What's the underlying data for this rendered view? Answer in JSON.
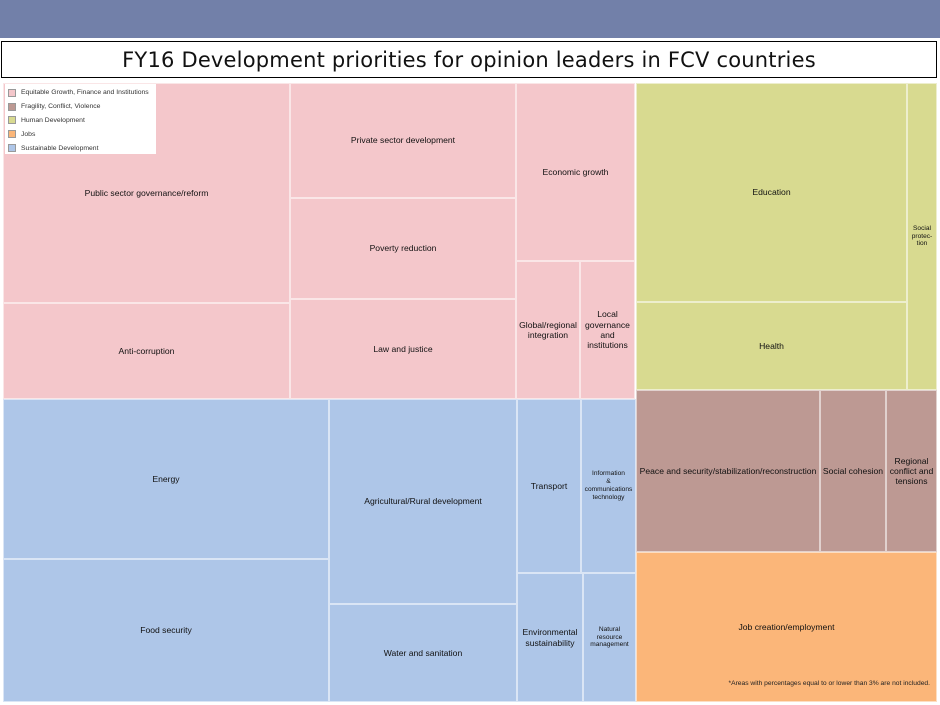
{
  "title": "FY16 Development priorities for opinion leaders in FCV countries",
  "footnote": "*Areas with percentages equal to or lower than 3% are not included.",
  "legend": [
    {
      "label": "Equitable Growth, Finance and Institutions",
      "color": "#f4c7cb"
    },
    {
      "label": "Fragility, Conflict, Violence",
      "color": "#bd9993"
    },
    {
      "label": "Human Development",
      "color": "#d8da90"
    },
    {
      "label": "Jobs",
      "color": "#fbb679"
    },
    {
      "label": "Sustainable Development",
      "color": "#aec6e8"
    }
  ],
  "chart_data": {
    "type": "treemap",
    "title": "FY16 Development priorities for opinion leaders in FCV countries",
    "groups": [
      {
        "name": "Equitable Growth, Finance and Institutions",
        "color": "#f4c7cb",
        "items": [
          {
            "label": "Public sector governance/reform",
            "area": 6.3
          },
          {
            "label": "Anti-corruption",
            "area": 2.7
          },
          {
            "label": "Private sector development",
            "area": 2.8
          },
          {
            "label": "Poverty reduction",
            "area": 2.5
          },
          {
            "label": "Law and justice",
            "area": 2.4
          },
          {
            "label": "Economic growth",
            "area": 2.1
          },
          {
            "label": "Global/regional integration",
            "area": 0.8
          },
          {
            "label": "Local governance and institutions",
            "area": 0.7
          }
        ]
      },
      {
        "name": "Human Development",
        "color": "#d8da90",
        "items": [
          {
            "label": "Education",
            "area": 5.5
          },
          {
            "label": "Health",
            "area": 2.2
          },
          {
            "label": "Social protection",
            "area": 0.9
          }
        ]
      },
      {
        "name": "Fragility, Conflict, Violence",
        "color": "#bd9993",
        "items": [
          {
            "label": "Peace and security/stabilization/reconstruction",
            "area": 3.0
          },
          {
            "label": "Social cohesion",
            "area": 1.0
          },
          {
            "label": "Regional conflict and tensions",
            "area": 0.9
          }
        ]
      },
      {
        "name": "Sustainable Development",
        "color": "#aec6e8",
        "items": [
          {
            "label": "Energy",
            "area": 5.0
          },
          {
            "label": "Food security",
            "area": 4.4
          },
          {
            "label": "Agricultural/Rural development",
            "area": 5.3
          },
          {
            "label": "Water and sanitation",
            "area": 1.8
          },
          {
            "label": "Transport",
            "area": 1.8
          },
          {
            "label": "Environmental sustainability",
            "area": 1.2
          },
          {
            "label": "Information & communications technology",
            "area": 1.6
          },
          {
            "label": "Natural resource management",
            "area": 1.2
          }
        ]
      },
      {
        "name": "Jobs",
        "color": "#fbb679",
        "items": [
          {
            "label": "Job creation/employment",
            "area": 4.8
          }
        ]
      }
    ]
  }
}
